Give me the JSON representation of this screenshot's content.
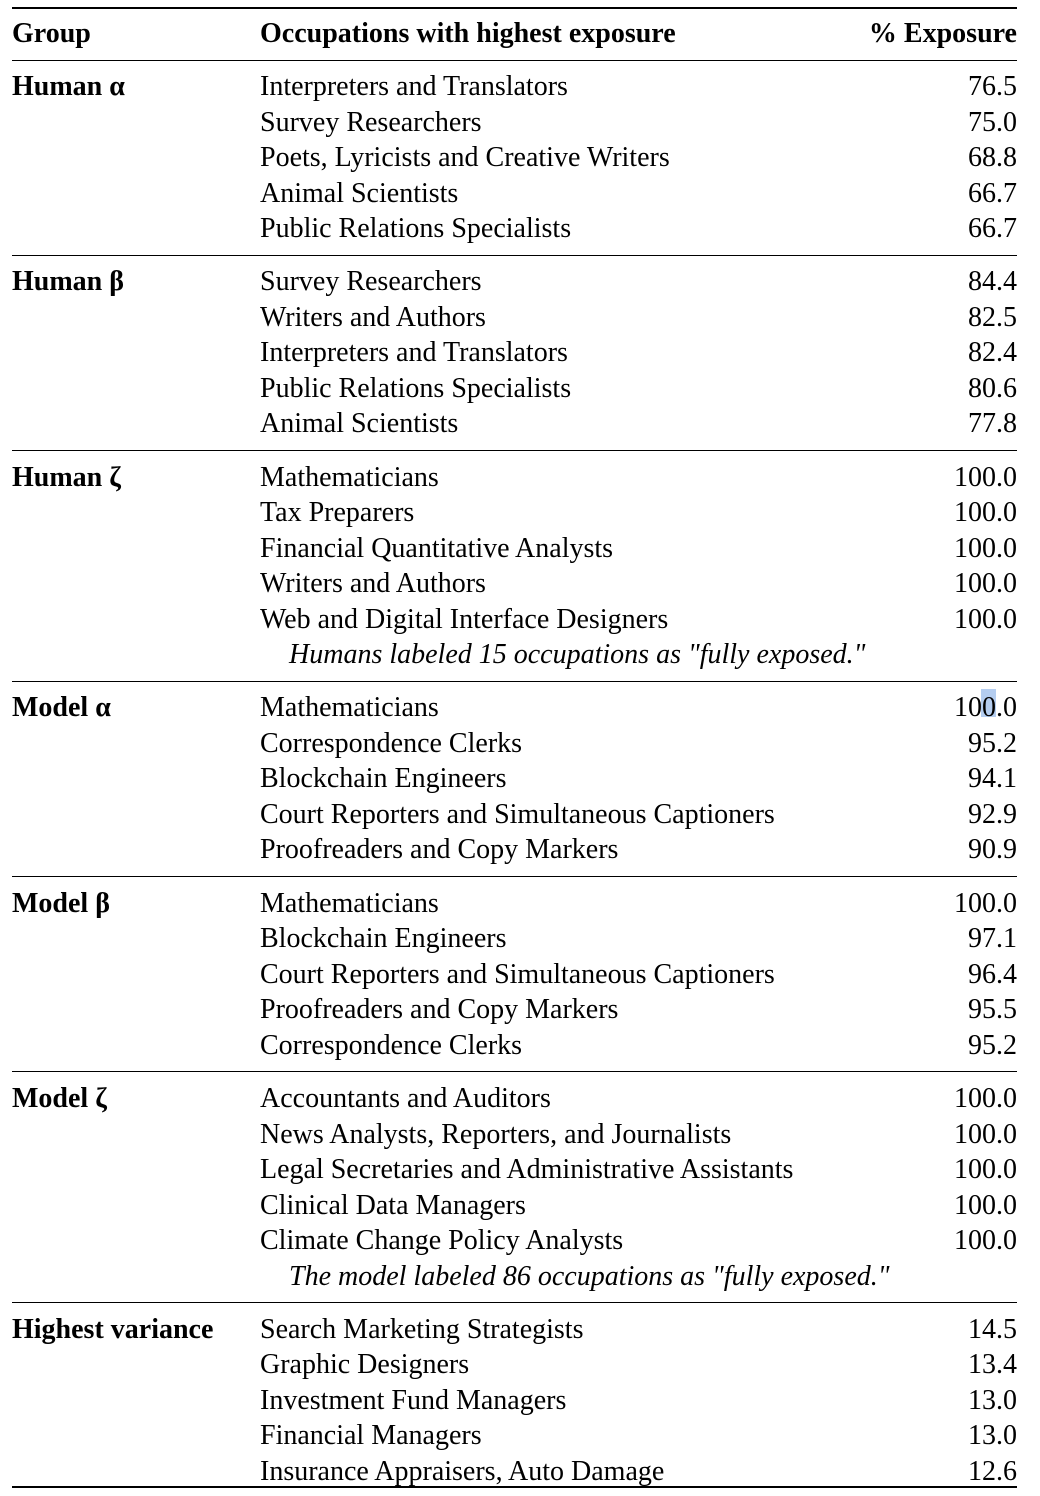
{
  "header": {
    "group": "Group",
    "occupations": "Occupations with highest exposure",
    "exposure": "% Exposure"
  },
  "sections": [
    {
      "group": "Human α",
      "rows": [
        {
          "occupation": "Interpreters and Translators",
          "exposure": "76.5"
        },
        {
          "occupation": "Survey Researchers",
          "exposure": "75.0"
        },
        {
          "occupation": "Poets, Lyricists and Creative Writers",
          "exposure": "68.8"
        },
        {
          "occupation": "Animal Scientists",
          "exposure": "66.7"
        },
        {
          "occupation": "Public Relations Specialists",
          "exposure": "66.7"
        }
      ]
    },
    {
      "group": "Human β",
      "rows": [
        {
          "occupation": "Survey Researchers",
          "exposure": "84.4"
        },
        {
          "occupation": "Writers and Authors",
          "exposure": "82.5"
        },
        {
          "occupation": "Interpreters and Translators",
          "exposure": "82.4"
        },
        {
          "occupation": "Public Relations Specialists",
          "exposure": "80.6"
        },
        {
          "occupation": "Animal Scientists",
          "exposure": "77.8"
        }
      ]
    },
    {
      "group": "Human ζ",
      "rows": [
        {
          "occupation": "Mathematicians",
          "exposure": "100.0"
        },
        {
          "occupation": "Tax Preparers",
          "exposure": "100.0"
        },
        {
          "occupation": "Financial Quantitative Analysts",
          "exposure": "100.0"
        },
        {
          "occupation": "Writers and Authors",
          "exposure": "100.0"
        },
        {
          "occupation": "Web and Digital Interface Designers",
          "exposure": "100.0"
        }
      ],
      "note": "Humans labeled 15 occupations as \"fully exposed.\""
    },
    {
      "group": "Model α",
      "rows": [
        {
          "occupation": "Mathematicians",
          "exposure": "100.0"
        },
        {
          "occupation": "Correspondence Clerks",
          "exposure": "95.2"
        },
        {
          "occupation": "Blockchain Engineers",
          "exposure": "94.1"
        },
        {
          "occupation": "Court Reporters and Simultaneous Captioners",
          "exposure": "92.9"
        },
        {
          "occupation": "Proofreaders and Copy Markers",
          "exposure": "90.9"
        }
      ]
    },
    {
      "group": "Model β",
      "rows": [
        {
          "occupation": "Mathematicians",
          "exposure": "100.0"
        },
        {
          "occupation": "Blockchain Engineers",
          "exposure": "97.1"
        },
        {
          "occupation": "Court Reporters and Simultaneous Captioners",
          "exposure": "96.4"
        },
        {
          "occupation": "Proofreaders and Copy Markers",
          "exposure": "95.5"
        },
        {
          "occupation": "Correspondence Clerks",
          "exposure": "95.2"
        }
      ]
    },
    {
      "group": "Model ζ",
      "rows": [
        {
          "occupation": "Accountants and Auditors",
          "exposure": "100.0"
        },
        {
          "occupation": "News Analysts, Reporters, and Journalists",
          "exposure": "100.0"
        },
        {
          "occupation": "Legal Secretaries and Administrative Assistants",
          "exposure": "100.0"
        },
        {
          "occupation": "Clinical Data Managers",
          "exposure": "100.0"
        },
        {
          "occupation": "Climate Change Policy Analysts",
          "exposure": "100.0"
        }
      ],
      "note": "The model labeled 86 occupations as \"fully exposed.\""
    },
    {
      "group": "Highest variance",
      "rows": [
        {
          "occupation": "Search Marketing Strategists",
          "exposure": "14.5"
        },
        {
          "occupation": "Graphic Designers",
          "exposure": "13.4"
        },
        {
          "occupation": "Investment Fund Managers",
          "exposure": "13.0"
        },
        {
          "occupation": "Financial Managers",
          "exposure": "13.0"
        },
        {
          "occupation": "Insurance Appraisers, Auto Damage",
          "exposure": "12.6"
        }
      ]
    }
  ],
  "selection_color": "#b4cdf0"
}
